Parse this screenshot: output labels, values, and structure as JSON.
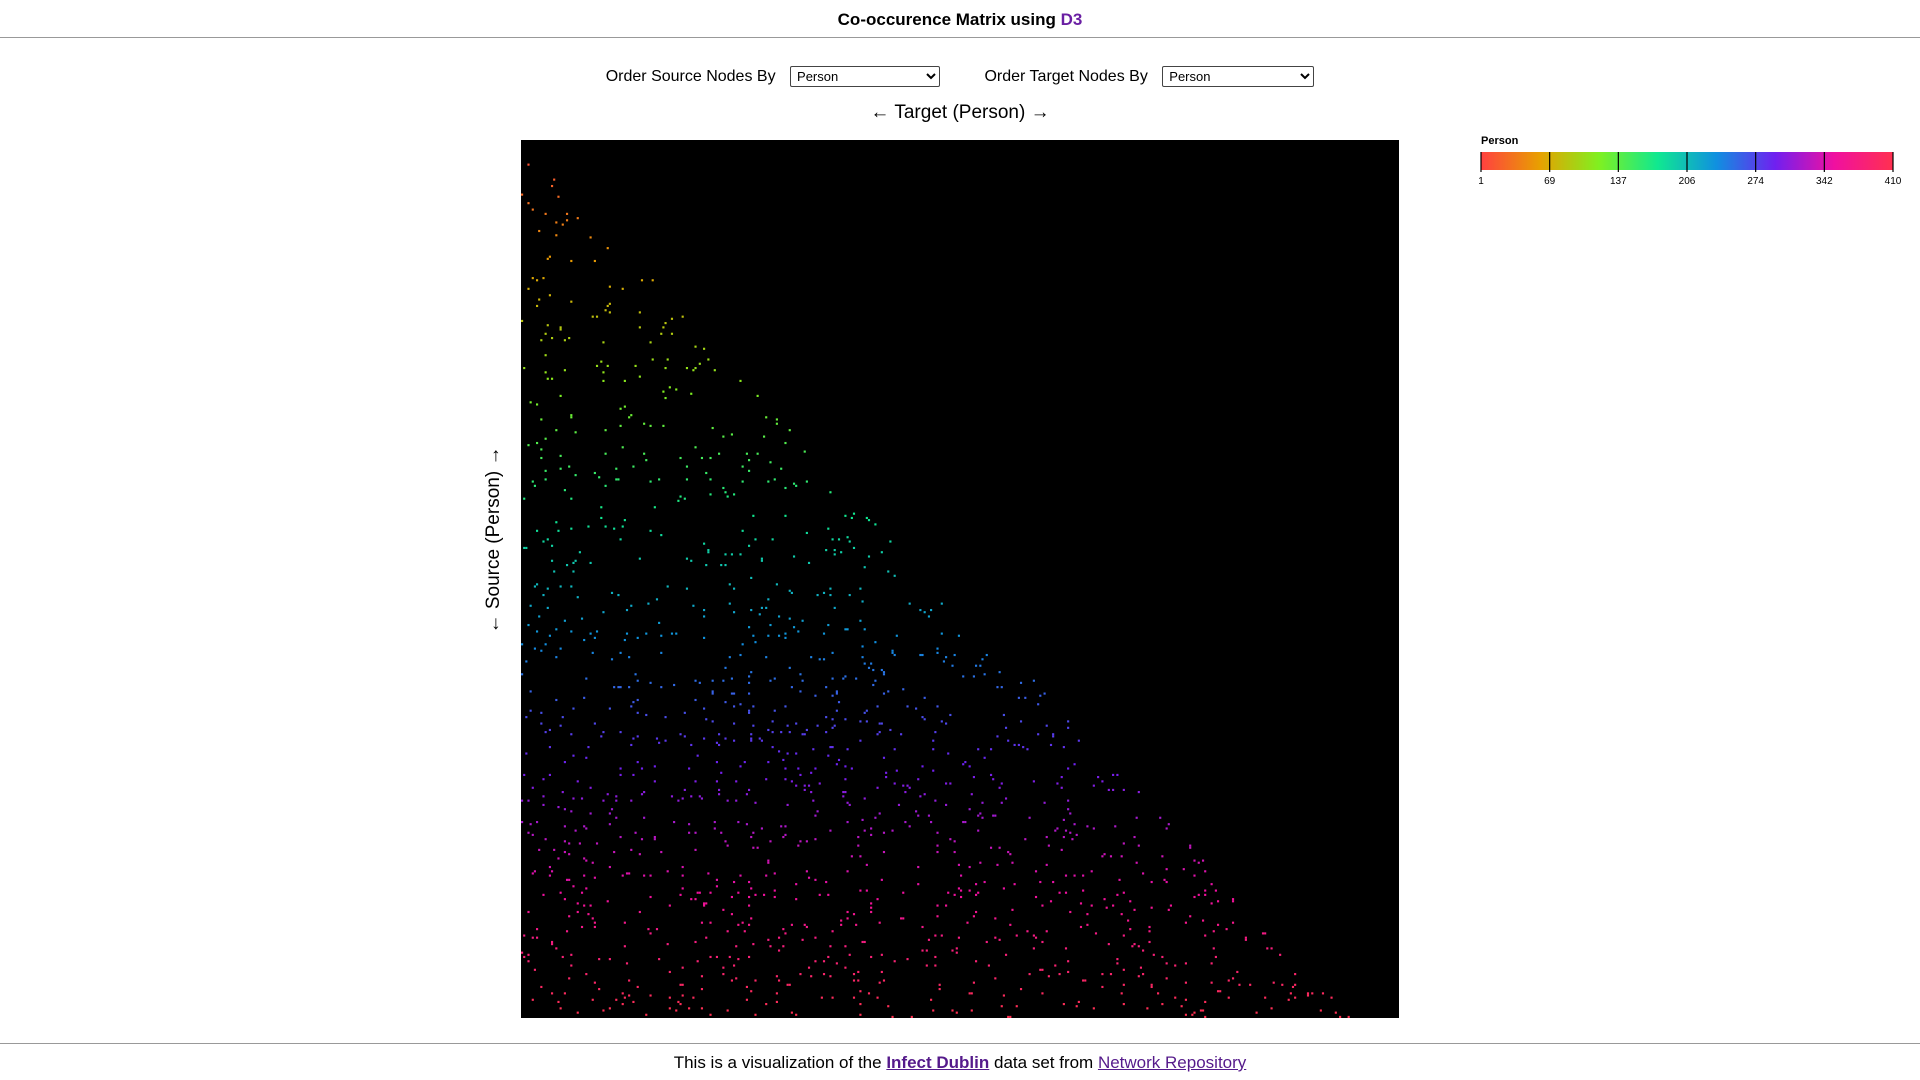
{
  "header": {
    "title_prefix": "Co-occurence Matrix using ",
    "title_link": "D3",
    "accent_color": "#6a1fa3"
  },
  "controls": {
    "source_label": "Order Source Nodes By",
    "source_value": "Person",
    "target_label": "Order Target Nodes By",
    "target_value": "Person"
  },
  "axes": {
    "target_title": "← Target (Person) →",
    "source_title": "← Source (Person) →"
  },
  "legend": {
    "title": "Person",
    "ticks": [
      "1",
      "69",
      "137",
      "206",
      "274",
      "342",
      "410"
    ],
    "color_stops": [
      "#ff4040",
      "#e8a000",
      "#80f020",
      "#10e890",
      "#1090e0",
      "#7020f0",
      "#f010a0",
      "#ff3050"
    ]
  },
  "chart_data": {
    "type": "heatmap",
    "title": "",
    "xlabel": "← Target (Person) →",
    "ylabel": "← Source (Person) →",
    "node_count": 410,
    "xlim": [
      1,
      410
    ],
    "ylim": [
      1,
      410
    ],
    "color_by": "Person",
    "background": "#000000",
    "structure": "lower-triangular sparse co-occurrence pattern, color by source person index"
  },
  "footer": {
    "prefix": "This is a visualization of the ",
    "dataset_link": "Infect Dublin",
    "middle": " data set from ",
    "repo_link": "Network Repository"
  }
}
